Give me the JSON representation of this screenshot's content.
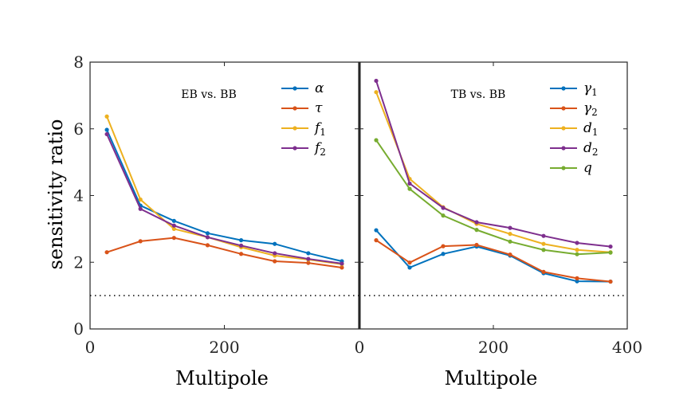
{
  "chart_data": [
    {
      "type": "line",
      "title": "EB vs. BB",
      "xlabel": "Multipole",
      "ylabel": "sensitivity ratio",
      "xlim": [
        0,
        400
      ],
      "ylim": [
        0,
        8
      ],
      "xticks": [
        "0",
        "200"
      ],
      "yticks": [
        "0",
        "2",
        "4",
        "6",
        "8"
      ],
      "reference_line": {
        "y": 1,
        "style": "dotted"
      },
      "legend_position": "top-right",
      "x": [
        25,
        75,
        125,
        175,
        225,
        275,
        325,
        375
      ],
      "series": [
        {
          "name": "α",
          "color": "#0072BD",
          "values": [
            5.97,
            3.7,
            3.24,
            2.87,
            2.66,
            2.55,
            2.27,
            2.03
          ]
        },
        {
          "name": "τ",
          "color": "#D95319",
          "values": [
            2.3,
            2.63,
            2.73,
            2.51,
            2.25,
            2.03,
            1.98,
            1.84
          ]
        },
        {
          "name": "f1",
          "color": "#EDB120",
          "values": [
            6.37,
            3.88,
            3.0,
            2.75,
            2.45,
            2.2,
            2.08,
            1.94
          ]
        },
        {
          "name": "f2",
          "color": "#7E2F8E",
          "values": [
            5.84,
            3.6,
            3.1,
            2.75,
            2.5,
            2.27,
            2.1,
            1.96
          ]
        }
      ]
    },
    {
      "type": "line",
      "title": "TB vs. BB",
      "xlabel": "Multipole",
      "ylabel": "",
      "xlim": [
        0,
        400
      ],
      "ylim": [
        0,
        8
      ],
      "xticks": [
        "0",
        "200",
        "400"
      ],
      "reference_line": {
        "y": 1,
        "style": "dotted"
      },
      "legend_position": "top-right",
      "x": [
        25,
        75,
        125,
        175,
        225,
        275,
        325,
        375
      ],
      "series": [
        {
          "name": "γ1",
          "color": "#0072BD",
          "values": [
            2.96,
            1.84,
            2.25,
            2.47,
            2.2,
            1.67,
            1.43,
            1.42
          ]
        },
        {
          "name": "γ2",
          "color": "#D95319",
          "values": [
            2.66,
            1.99,
            2.48,
            2.52,
            2.23,
            1.71,
            1.52,
            1.42
          ]
        },
        {
          "name": "d1",
          "color": "#EDB120",
          "values": [
            7.1,
            4.5,
            3.65,
            3.15,
            2.85,
            2.55,
            2.37,
            2.3
          ]
        },
        {
          "name": "d2",
          "color": "#7E2F8E",
          "values": [
            7.44,
            4.36,
            3.63,
            3.2,
            3.03,
            2.79,
            2.58,
            2.47
          ]
        },
        {
          "name": "q",
          "color": "#77AC30",
          "values": [
            5.66,
            4.2,
            3.4,
            2.97,
            2.62,
            2.37,
            2.24,
            2.29
          ]
        }
      ]
    }
  ]
}
